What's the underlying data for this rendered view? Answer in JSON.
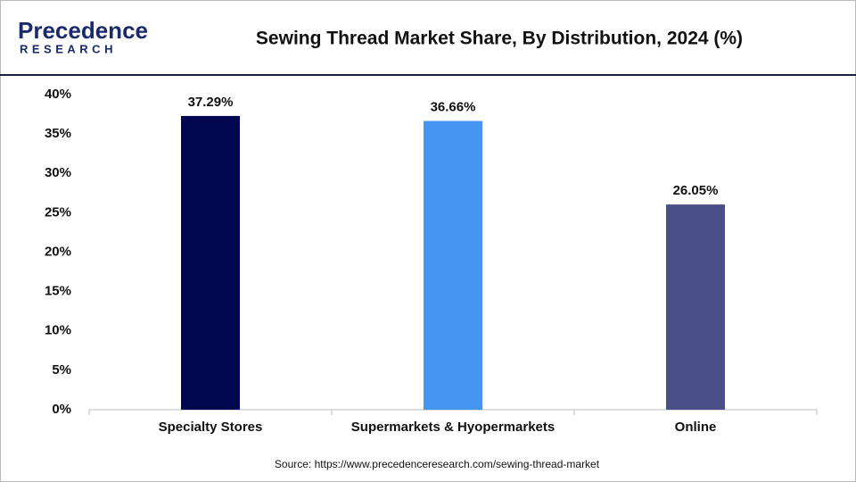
{
  "logo": {
    "name": "Precedence",
    "tagline": "RESEARCH"
  },
  "chart_data": {
    "type": "bar",
    "title": "Sewing Thread Market Share, By Distribution, 2024 (%)",
    "categories": [
      "Specialty Stores",
      "Supermarkets & Hyopermarkets",
      "Online"
    ],
    "values": [
      37.29,
      36.66,
      26.05
    ],
    "value_labels": [
      "37.29%",
      "36.66%",
      "26.05%"
    ],
    "colors": [
      "#02074f",
      "#4596f0",
      "#4b4f88"
    ],
    "ylim": [
      0,
      40
    ],
    "yticks": [
      {
        "value": 0,
        "label": "0%"
      },
      {
        "value": 5,
        "label": "5%"
      },
      {
        "value": 10,
        "label": "10%"
      },
      {
        "value": 15,
        "label": "15%"
      },
      {
        "value": 20,
        "label": "20%"
      },
      {
        "value": 25,
        "label": "25%"
      },
      {
        "value": 30,
        "label": "30%"
      },
      {
        "value": 35,
        "label": "35%"
      },
      {
        "value": 40,
        "label": "40%"
      }
    ],
    "grid": false,
    "source": "Source: https://www.precedenceresearch.com/sewing-thread-market"
  }
}
